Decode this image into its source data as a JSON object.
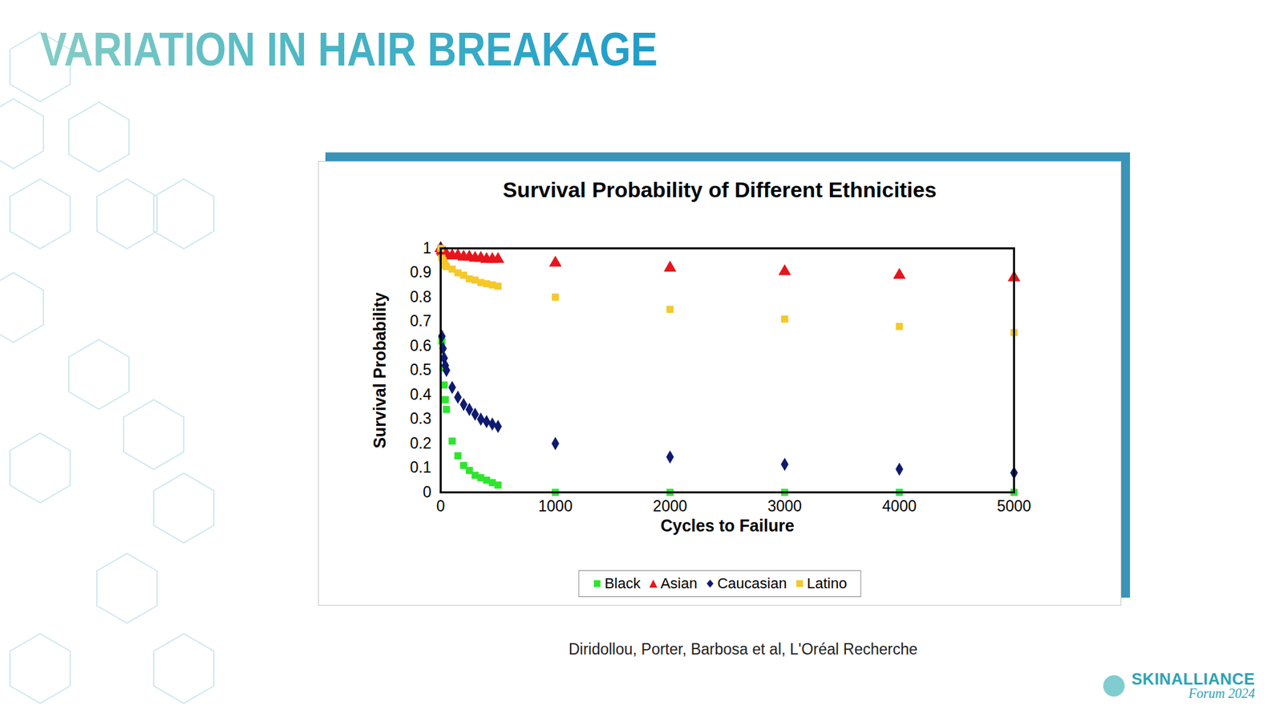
{
  "slide": {
    "heading": "VARIATION IN HAIR BREAKAGE",
    "citation": "Diridollou, Porter, Barbosa et al, L'Oréal Recherche",
    "logo": [
      "SKINALLIANCE",
      "Forum 2024"
    ]
  },
  "chart_data": {
    "type": "scatter",
    "title": "Survival Probability of Different Ethnicities",
    "x_label": "Cycles to Failure",
    "y_label": "Survival Probability",
    "x": [
      0,
      10,
      20,
      30,
      40,
      50,
      100,
      150,
      200,
      250,
      300,
      350,
      400,
      450,
      500,
      1000,
      2000,
      3000,
      4000,
      5000
    ],
    "xlim": [
      0,
      5000
    ],
    "xticks": [
      0,
      1000,
      2000,
      3000,
      4000,
      5000
    ],
    "ylim": [
      0,
      1
    ],
    "yticks": [
      0,
      0.1,
      0.2,
      0.3,
      0.4,
      0.5,
      0.6,
      0.7,
      0.8,
      0.9,
      1
    ],
    "grid": false,
    "legend": "bottom",
    "series": [
      {
        "name": "Black",
        "color": "#2ee52e",
        "marker": "square",
        "values": [
          1,
          0.62,
          0.51,
          0.44,
          0.38,
          0.34,
          0.21,
          0.15,
          0.11,
          0.09,
          0.07,
          0.06,
          0.05,
          0.04,
          0.03,
          0,
          0,
          0,
          0,
          0
        ]
      },
      {
        "name": "Asian",
        "color": "#e8141c",
        "marker": "triangle",
        "values": [
          1,
          0.99,
          0.985,
          0.98,
          0.98,
          0.975,
          0.97,
          0.97,
          0.965,
          0.965,
          0.96,
          0.96,
          0.955,
          0.955,
          0.955,
          0.94,
          0.92,
          0.905,
          0.89,
          0.88
        ]
      },
      {
        "name": "Caucasian",
        "color": "#0d1a6e",
        "marker": "diamond",
        "values": [
          1,
          0.64,
          0.59,
          0.55,
          0.52,
          0.5,
          0.43,
          0.39,
          0.36,
          0.34,
          0.32,
          0.3,
          0.29,
          0.28,
          0.27,
          0.2,
          0.145,
          0.115,
          0.095,
          0.08
        ]
      },
      {
        "name": "Latino",
        "color": "#f5c82a",
        "marker": "square",
        "values": [
          1,
          0.96,
          0.95,
          0.94,
          0.93,
          0.925,
          0.915,
          0.9,
          0.89,
          0.875,
          0.87,
          0.86,
          0.855,
          0.85,
          0.845,
          0.8,
          0.75,
          0.71,
          0.68,
          0.655
        ]
      }
    ]
  }
}
